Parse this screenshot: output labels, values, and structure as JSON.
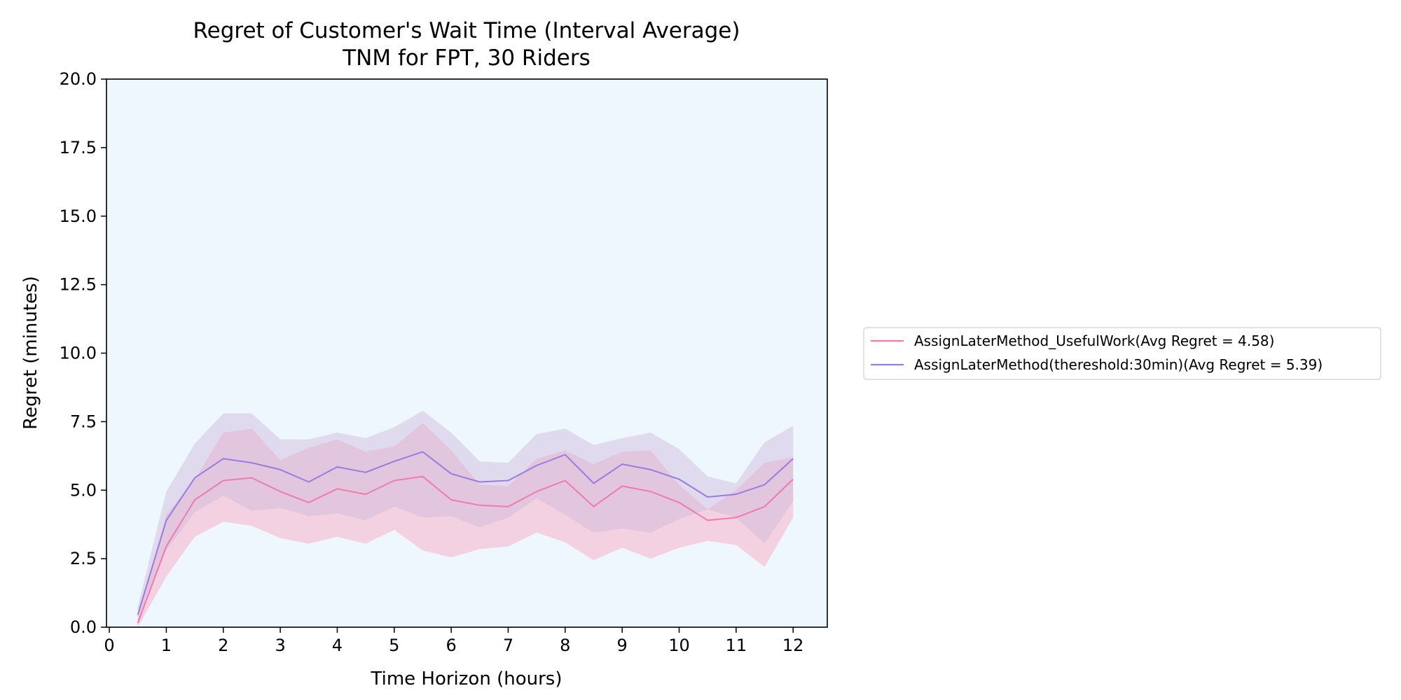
{
  "chart_data": {
    "type": "line",
    "title": "Regret of Customer's Wait Time (Interval Average)",
    "subtitle": "TNM for FPT, 30 Riders",
    "xlabel": "Time Horizon (hours)",
    "ylabel": "Regret (minutes)",
    "xlim": [
      -0.05,
      12.6
    ],
    "ylim": [
      0,
      20
    ],
    "xticks": [
      0,
      1,
      2,
      3,
      4,
      5,
      6,
      7,
      8,
      9,
      10,
      11,
      12
    ],
    "yticks": [
      0.0,
      2.5,
      5.0,
      7.5,
      10.0,
      12.5,
      15.0,
      17.5,
      20.0
    ],
    "ytick_labels": [
      "0.0",
      "2.5",
      "5.0",
      "7.5",
      "10.0",
      "12.5",
      "15.0",
      "17.5",
      "20.0"
    ],
    "grid": false,
    "background_color": "#eef6fe",
    "legend_position": "right-outside",
    "x": [
      0.5,
      1,
      1.5,
      2,
      2.5,
      3,
      3.5,
      4,
      4.5,
      5,
      5.5,
      6,
      6.5,
      7,
      7.5,
      8,
      8.5,
      9,
      9.5,
      10,
      10.5,
      11,
      11.5,
      12
    ],
    "series": [
      {
        "name": "AssignLaterMethod_UsefulWork(Avg Regret = 4.58)",
        "color": "#f07ab0",
        "band_color": "#f7b3c8",
        "values": [
          0.15,
          2.95,
          4.65,
          5.35,
          5.45,
          4.95,
          4.55,
          5.05,
          4.85,
          5.35,
          5.5,
          4.65,
          4.45,
          4.4,
          4.95,
          5.35,
          4.4,
          5.15,
          4.95,
          4.55,
          3.9,
          4.0,
          4.4,
          5.4
        ],
        "lower": [
          0.0,
          1.85,
          3.3,
          3.85,
          3.7,
          3.25,
          3.05,
          3.3,
          3.05,
          3.55,
          2.8,
          2.55,
          2.85,
          2.95,
          3.45,
          3.1,
          2.45,
          2.9,
          2.5,
          2.9,
          3.15,
          3.0,
          2.2,
          4.0
        ],
        "upper": [
          0.3,
          4.1,
          5.4,
          7.1,
          7.25,
          6.1,
          6.55,
          6.85,
          6.4,
          6.6,
          7.45,
          6.45,
          5.2,
          5.15,
          6.15,
          6.45,
          5.95,
          6.4,
          6.45,
          5.2,
          4.3,
          5.0,
          6.0,
          6.2
        ]
      },
      {
        "name": "AssignLaterMethod(thereshold:30min)(Avg Regret = 5.39)",
        "color": "#9b7be0",
        "band_color": "#cfb8dc",
        "values": [
          0.45,
          3.9,
          5.45,
          6.15,
          6.0,
          5.75,
          5.3,
          5.85,
          5.65,
          6.05,
          6.4,
          5.6,
          5.3,
          5.35,
          5.9,
          6.3,
          5.25,
          5.95,
          5.75,
          5.4,
          4.75,
          4.85,
          5.2,
          6.15
        ],
        "lower": [
          0.2,
          2.8,
          4.2,
          4.8,
          4.25,
          4.35,
          4.05,
          4.15,
          3.9,
          4.4,
          4.0,
          4.05,
          3.65,
          4.0,
          4.7,
          4.1,
          3.45,
          3.6,
          3.45,
          3.95,
          4.3,
          4.0,
          3.05,
          4.6
        ],
        "upper": [
          0.75,
          4.95,
          6.7,
          7.8,
          7.8,
          6.85,
          6.85,
          7.1,
          6.9,
          7.3,
          7.9,
          7.1,
          6.05,
          6.0,
          7.05,
          7.25,
          6.65,
          6.9,
          7.1,
          6.5,
          5.5,
          5.25,
          6.75,
          7.35
        ]
      }
    ]
  }
}
